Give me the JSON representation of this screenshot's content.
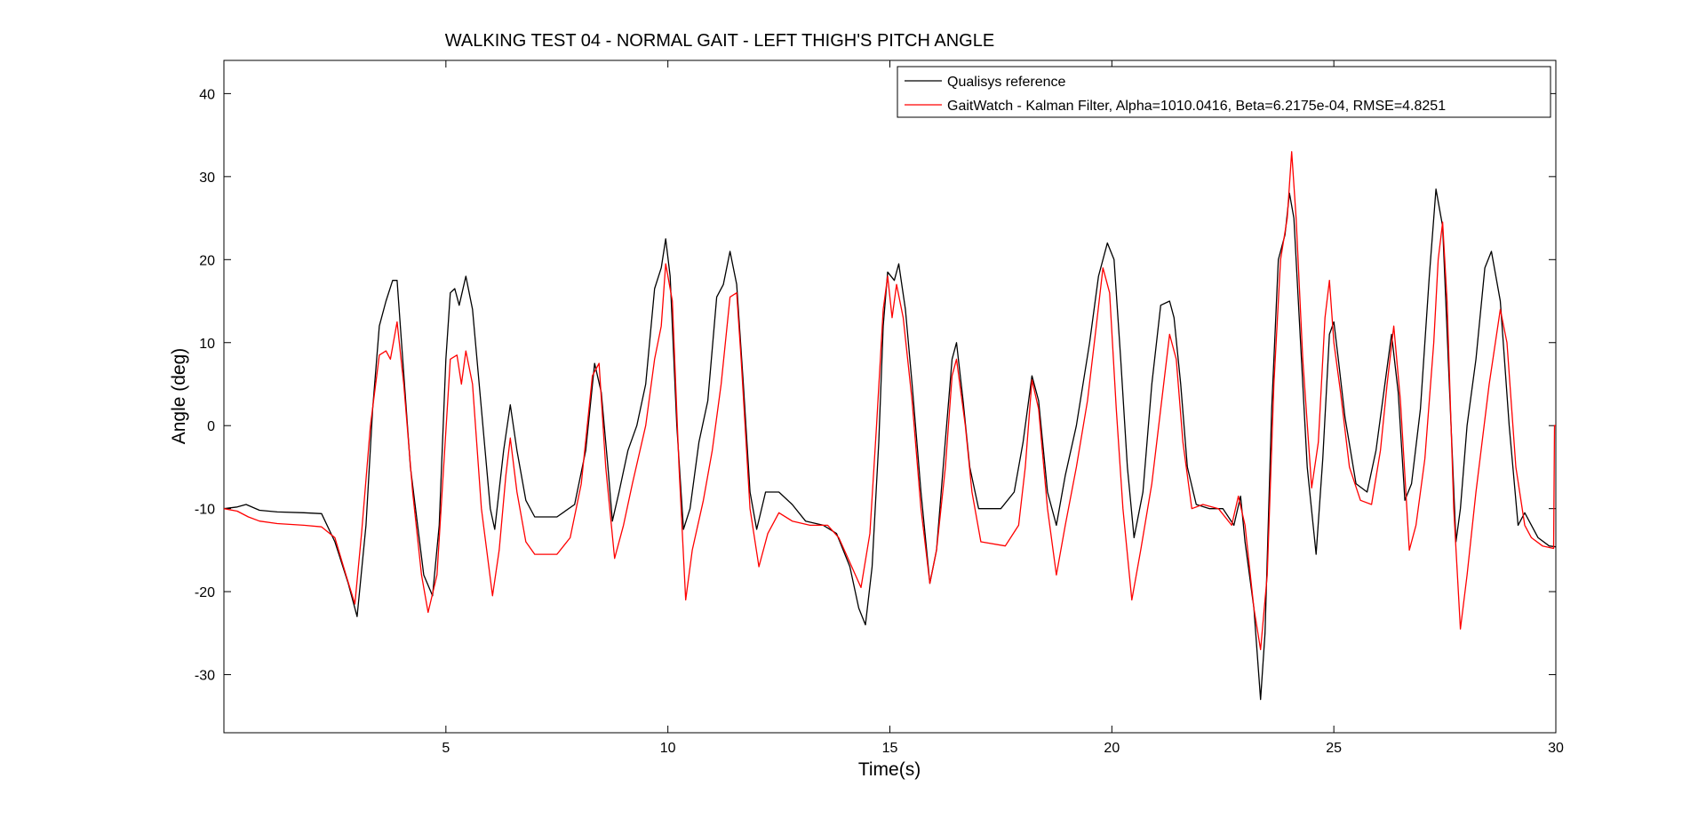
{
  "chart_data": {
    "type": "line",
    "title": "WALKING TEST 04 - NORMAL GAIT - LEFT THIGH'S PITCH ANGLE",
    "xlabel": "Time(s)",
    "ylabel": "Angle (deg)",
    "xlim": [
      0,
      30
    ],
    "ylim": [
      -37,
      44
    ],
    "xticks": [
      5,
      10,
      15,
      20,
      25,
      30
    ],
    "xtick_labels": [
      "5",
      "10",
      "15",
      "20",
      "25",
      "30"
    ],
    "yticks": [
      -30,
      -20,
      -10,
      0,
      10,
      20,
      30,
      40
    ],
    "ytick_labels": [
      "-30",
      "-20",
      "-10",
      "0",
      "10",
      "20",
      "30",
      "40"
    ],
    "grid": false,
    "legend_position": "top-right",
    "series": [
      {
        "name": "Qualisys reference",
        "color": "#000000",
        "points": [
          [
            0.0,
            -10.0
          ],
          [
            0.3,
            -9.8
          ],
          [
            0.5,
            -9.5
          ],
          [
            0.8,
            -10.2
          ],
          [
            1.2,
            -10.4
          ],
          [
            1.8,
            -10.5
          ],
          [
            2.2,
            -10.6
          ],
          [
            2.5,
            -14.0
          ],
          [
            2.8,
            -19.0
          ],
          [
            3.0,
            -23.0
          ],
          [
            3.2,
            -12.0
          ],
          [
            3.35,
            2.0
          ],
          [
            3.5,
            12.0
          ],
          [
            3.65,
            15.0
          ],
          [
            3.8,
            17.5
          ],
          [
            3.9,
            17.5
          ],
          [
            4.0,
            10.0
          ],
          [
            4.2,
            -5.0
          ],
          [
            4.5,
            -18.0
          ],
          [
            4.7,
            -20.5
          ],
          [
            4.85,
            -12.0
          ],
          [
            5.0,
            8.0
          ],
          [
            5.1,
            16.0
          ],
          [
            5.2,
            16.5
          ],
          [
            5.3,
            14.5
          ],
          [
            5.45,
            18.0
          ],
          [
            5.6,
            14.0
          ],
          [
            5.8,
            2.0
          ],
          [
            6.0,
            -10.0
          ],
          [
            6.1,
            -12.5
          ],
          [
            6.3,
            -3.0
          ],
          [
            6.45,
            2.5
          ],
          [
            6.6,
            -3.0
          ],
          [
            6.8,
            -9.0
          ],
          [
            7.0,
            -11.0
          ],
          [
            7.5,
            -11.0
          ],
          [
            7.9,
            -9.5
          ],
          [
            8.15,
            -3.0
          ],
          [
            8.35,
            7.5
          ],
          [
            8.5,
            4.0
          ],
          [
            8.65,
            -5.0
          ],
          [
            8.75,
            -11.5
          ],
          [
            8.9,
            -8.0
          ],
          [
            9.1,
            -3.0
          ],
          [
            9.3,
            0.0
          ],
          [
            9.5,
            5.0
          ],
          [
            9.7,
            16.5
          ],
          [
            9.85,
            19.0
          ],
          [
            9.95,
            22.5
          ],
          [
            10.05,
            18.0
          ],
          [
            10.2,
            0.0
          ],
          [
            10.35,
            -12.5
          ],
          [
            10.5,
            -10.0
          ],
          [
            10.7,
            -2.0
          ],
          [
            10.9,
            3.0
          ],
          [
            11.1,
            15.5
          ],
          [
            11.25,
            17.0
          ],
          [
            11.4,
            21.0
          ],
          [
            11.55,
            17.0
          ],
          [
            11.7,
            5.0
          ],
          [
            11.85,
            -8.0
          ],
          [
            12.0,
            -12.5
          ],
          [
            12.2,
            -8.0
          ],
          [
            12.5,
            -8.0
          ],
          [
            12.8,
            -9.5
          ],
          [
            13.1,
            -11.5
          ],
          [
            13.5,
            -12.0
          ],
          [
            13.8,
            -13.0
          ],
          [
            14.1,
            -17.0
          ],
          [
            14.3,
            -22.0
          ],
          [
            14.45,
            -24.0
          ],
          [
            14.6,
            -17.0
          ],
          [
            14.75,
            -2.0
          ],
          [
            14.85,
            12.0
          ],
          [
            14.95,
            18.5
          ],
          [
            15.1,
            17.5
          ],
          [
            15.2,
            19.5
          ],
          [
            15.35,
            14.0
          ],
          [
            15.5,
            5.0
          ],
          [
            15.7,
            -8.0
          ],
          [
            15.9,
            -19.0
          ],
          [
            16.05,
            -15.0
          ],
          [
            16.2,
            -5.0
          ],
          [
            16.4,
            8.0
          ],
          [
            16.5,
            10.0
          ],
          [
            16.65,
            3.0
          ],
          [
            16.8,
            -5.0
          ],
          [
            17.0,
            -10.0
          ],
          [
            17.5,
            -10.0
          ],
          [
            17.8,
            -8.0
          ],
          [
            18.0,
            -2.0
          ],
          [
            18.2,
            6.0
          ],
          [
            18.35,
            3.0
          ],
          [
            18.55,
            -8.0
          ],
          [
            18.75,
            -12.0
          ],
          [
            18.95,
            -6.0
          ],
          [
            19.2,
            0.0
          ],
          [
            19.5,
            10.0
          ],
          [
            19.7,
            18.0
          ],
          [
            19.9,
            22.0
          ],
          [
            20.05,
            20.0
          ],
          [
            20.2,
            8.0
          ],
          [
            20.35,
            -5.0
          ],
          [
            20.5,
            -13.5
          ],
          [
            20.7,
            -8.0
          ],
          [
            20.9,
            5.0
          ],
          [
            21.1,
            14.5
          ],
          [
            21.3,
            15.0
          ],
          [
            21.4,
            13.0
          ],
          [
            21.55,
            5.0
          ],
          [
            21.7,
            -5.0
          ],
          [
            21.9,
            -9.5
          ],
          [
            22.2,
            -10.0
          ],
          [
            22.5,
            -10.0
          ],
          [
            22.75,
            -12.0
          ],
          [
            22.9,
            -8.5
          ],
          [
            23.0,
            -14.0
          ],
          [
            23.2,
            -22.0
          ],
          [
            23.35,
            -33.0
          ],
          [
            23.45,
            -25.0
          ],
          [
            23.6,
            2.0
          ],
          [
            23.75,
            20.0
          ],
          [
            23.9,
            23.0
          ],
          [
            24.0,
            28.0
          ],
          [
            24.1,
            25.0
          ],
          [
            24.25,
            10.0
          ],
          [
            24.4,
            -5.0
          ],
          [
            24.6,
            -15.5
          ],
          [
            24.75,
            -4.0
          ],
          [
            24.9,
            11.0
          ],
          [
            25.0,
            12.5
          ],
          [
            25.1,
            8.0
          ],
          [
            25.25,
            1.0
          ],
          [
            25.5,
            -7.0
          ],
          [
            25.75,
            -8.0
          ],
          [
            25.95,
            -3.0
          ],
          [
            26.15,
            5.0
          ],
          [
            26.3,
            11.0
          ],
          [
            26.45,
            4.0
          ],
          [
            26.6,
            -9.0
          ],
          [
            26.75,
            -7.0
          ],
          [
            26.95,
            2.0
          ],
          [
            27.15,
            18.0
          ],
          [
            27.3,
            28.5
          ],
          [
            27.45,
            24.0
          ],
          [
            27.6,
            5.0
          ],
          [
            27.75,
            -14.0
          ],
          [
            27.85,
            -10.0
          ],
          [
            28.0,
            0.0
          ],
          [
            28.2,
            8.0
          ],
          [
            28.4,
            19.0
          ],
          [
            28.55,
            21.0
          ],
          [
            28.75,
            15.0
          ],
          [
            28.95,
            0.0
          ],
          [
            29.15,
            -12.0
          ],
          [
            29.3,
            -10.5
          ],
          [
            29.6,
            -13.5
          ],
          [
            29.85,
            -14.5
          ],
          [
            30.0,
            -14.6
          ]
        ]
      },
      {
        "name": "GaitWatch - Kalman Filter, Alpha=1010.0416, Beta=6.2175e-04, RMSE=4.8251",
        "color": "#ff0000",
        "points": [
          [
            0.0,
            -10.0
          ],
          [
            0.3,
            -10.3
          ],
          [
            0.55,
            -11.0
          ],
          [
            0.8,
            -11.5
          ],
          [
            1.2,
            -11.8
          ],
          [
            1.8,
            -12.0
          ],
          [
            2.2,
            -12.2
          ],
          [
            2.5,
            -13.5
          ],
          [
            2.75,
            -18.0
          ],
          [
            2.95,
            -21.5
          ],
          [
            3.1,
            -13.0
          ],
          [
            3.3,
            0.0
          ],
          [
            3.5,
            8.5
          ],
          [
            3.65,
            9.0
          ],
          [
            3.75,
            8.0
          ],
          [
            3.9,
            12.5
          ],
          [
            4.05,
            5.0
          ],
          [
            4.25,
            -8.0
          ],
          [
            4.45,
            -18.0
          ],
          [
            4.6,
            -22.5
          ],
          [
            4.8,
            -18.0
          ],
          [
            4.95,
            -5.0
          ],
          [
            5.1,
            8.0
          ],
          [
            5.25,
            8.5
          ],
          [
            5.35,
            5.0
          ],
          [
            5.45,
            9.0
          ],
          [
            5.6,
            5.0
          ],
          [
            5.8,
            -10.0
          ],
          [
            6.05,
            -20.5
          ],
          [
            6.2,
            -15.0
          ],
          [
            6.35,
            -6.0
          ],
          [
            6.45,
            -1.5
          ],
          [
            6.6,
            -8.0
          ],
          [
            6.8,
            -14.0
          ],
          [
            7.0,
            -15.5
          ],
          [
            7.5,
            -15.5
          ],
          [
            7.8,
            -13.5
          ],
          [
            8.05,
            -7.0
          ],
          [
            8.3,
            6.0
          ],
          [
            8.45,
            7.5
          ],
          [
            8.6,
            -5.0
          ],
          [
            8.8,
            -16.0
          ],
          [
            9.0,
            -12.0
          ],
          [
            9.2,
            -7.0
          ],
          [
            9.5,
            0.0
          ],
          [
            9.7,
            8.0
          ],
          [
            9.85,
            12.0
          ],
          [
            9.95,
            19.5
          ],
          [
            10.1,
            15.0
          ],
          [
            10.25,
            -5.0
          ],
          [
            10.4,
            -21.0
          ],
          [
            10.55,
            -15.0
          ],
          [
            10.8,
            -9.0
          ],
          [
            11.0,
            -3.0
          ],
          [
            11.2,
            5.0
          ],
          [
            11.4,
            15.5
          ],
          [
            11.55,
            16.0
          ],
          [
            11.65,
            8.0
          ],
          [
            11.85,
            -10.0
          ],
          [
            12.05,
            -17.0
          ],
          [
            12.25,
            -13.0
          ],
          [
            12.5,
            -10.5
          ],
          [
            12.8,
            -11.5
          ],
          [
            13.2,
            -12.0
          ],
          [
            13.6,
            -12.0
          ],
          [
            13.85,
            -13.5
          ],
          [
            14.1,
            -16.5
          ],
          [
            14.35,
            -19.5
          ],
          [
            14.55,
            -13.0
          ],
          [
            14.7,
            0.0
          ],
          [
            14.85,
            14.0
          ],
          [
            14.95,
            18.0
          ],
          [
            15.05,
            13.0
          ],
          [
            15.15,
            17.0
          ],
          [
            15.3,
            13.0
          ],
          [
            15.5,
            3.0
          ],
          [
            15.7,
            -10.0
          ],
          [
            15.9,
            -19.0
          ],
          [
            16.05,
            -15.0
          ],
          [
            16.25,
            -5.0
          ],
          [
            16.4,
            6.0
          ],
          [
            16.5,
            8.0
          ],
          [
            16.7,
            0.0
          ],
          [
            16.85,
            -8.0
          ],
          [
            17.05,
            -14.0
          ],
          [
            17.6,
            -14.5
          ],
          [
            17.9,
            -12.0
          ],
          [
            18.05,
            -5.0
          ],
          [
            18.2,
            5.5
          ],
          [
            18.35,
            2.0
          ],
          [
            18.55,
            -10.0
          ],
          [
            18.75,
            -18.0
          ],
          [
            18.95,
            -12.0
          ],
          [
            19.2,
            -5.0
          ],
          [
            19.45,
            3.0
          ],
          [
            19.65,
            12.0
          ],
          [
            19.8,
            19.0
          ],
          [
            19.95,
            16.0
          ],
          [
            20.1,
            2.0
          ],
          [
            20.25,
            -10.0
          ],
          [
            20.45,
            -21.0
          ],
          [
            20.65,
            -15.0
          ],
          [
            20.9,
            -7.0
          ],
          [
            21.1,
            2.0
          ],
          [
            21.3,
            11.0
          ],
          [
            21.45,
            8.0
          ],
          [
            21.6,
            -2.0
          ],
          [
            21.8,
            -10.0
          ],
          [
            22.05,
            -9.5
          ],
          [
            22.4,
            -10.0
          ],
          [
            22.7,
            -12.0
          ],
          [
            22.85,
            -8.5
          ],
          [
            23.0,
            -12.0
          ],
          [
            23.2,
            -22.0
          ],
          [
            23.35,
            -27.0
          ],
          [
            23.5,
            -18.0
          ],
          [
            23.65,
            5.0
          ],
          [
            23.8,
            20.0
          ],
          [
            23.95,
            25.0
          ],
          [
            24.05,
            33.0
          ],
          [
            24.15,
            25.0
          ],
          [
            24.3,
            8.0
          ],
          [
            24.5,
            -7.5
          ],
          [
            24.65,
            -2.0
          ],
          [
            24.8,
            13.0
          ],
          [
            24.9,
            17.5
          ],
          [
            25.0,
            10.0
          ],
          [
            25.15,
            4.0
          ],
          [
            25.35,
            -5.0
          ],
          [
            25.6,
            -9.0
          ],
          [
            25.85,
            -9.5
          ],
          [
            26.05,
            -3.0
          ],
          [
            26.2,
            5.0
          ],
          [
            26.35,
            12.0
          ],
          [
            26.5,
            3.0
          ],
          [
            26.7,
            -15.0
          ],
          [
            26.85,
            -12.0
          ],
          [
            27.05,
            -4.0
          ],
          [
            27.25,
            10.0
          ],
          [
            27.35,
            20.0
          ],
          [
            27.45,
            24.5
          ],
          [
            27.55,
            15.0
          ],
          [
            27.7,
            -10.0
          ],
          [
            27.85,
            -24.5
          ],
          [
            28.0,
            -18.0
          ],
          [
            28.2,
            -8.0
          ],
          [
            28.5,
            5.0
          ],
          [
            28.75,
            14.0
          ],
          [
            28.9,
            10.0
          ],
          [
            29.1,
            -5.0
          ],
          [
            29.3,
            -12.0
          ],
          [
            29.45,
            -13.5
          ],
          [
            29.7,
            -14.5
          ],
          [
            29.95,
            -14.8
          ],
          [
            29.97,
            0.0
          ],
          [
            30.0,
            0.0
          ]
        ]
      }
    ]
  }
}
